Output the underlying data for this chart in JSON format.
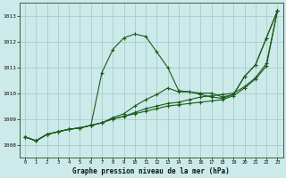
{
  "title": "Graphe pression niveau de la mer (hPa)",
  "background_color": "#cceaea",
  "grid_color": "#aacccc",
  "line_color": "#1a5c1a",
  "xlim": [
    -0.5,
    23.5
  ],
  "ylim": [
    1007.5,
    1013.5
  ],
  "yticks": [
    1008,
    1009,
    1010,
    1011,
    1012,
    1013
  ],
  "xticks": [
    0,
    1,
    2,
    3,
    4,
    5,
    6,
    7,
    8,
    9,
    10,
    11,
    12,
    13,
    14,
    15,
    16,
    17,
    18,
    19,
    20,
    21,
    22,
    23
  ],
  "series": [
    [
      1008.3,
      1008.15,
      1008.4,
      1008.5,
      1008.6,
      1008.65,
      1008.75,
      1010.8,
      1011.7,
      1012.15,
      1012.3,
      1012.2,
      1011.6,
      1011.0,
      1010.1,
      1010.05,
      1010.0,
      1010.0,
      1009.85,
      1009.95,
      1010.65,
      1011.1,
      1012.15,
      1013.2
    ],
    [
      1008.3,
      1008.15,
      1008.4,
      1008.5,
      1008.6,
      1008.65,
      1008.75,
      1008.85,
      1009.0,
      1009.1,
      1009.25,
      1009.4,
      1009.5,
      1009.6,
      1009.65,
      1009.75,
      1009.85,
      1009.9,
      1009.95,
      1010.0,
      1010.25,
      1010.6,
      1011.15,
      1013.2
    ],
    [
      1008.3,
      1008.15,
      1008.4,
      1008.5,
      1008.6,
      1008.65,
      1008.75,
      1008.85,
      1009.0,
      1009.1,
      1009.2,
      1009.3,
      1009.4,
      1009.5,
      1009.55,
      1009.6,
      1009.65,
      1009.7,
      1009.75,
      1009.9,
      1010.2,
      1010.55,
      1011.05,
      1013.2
    ],
    [
      1008.3,
      1008.15,
      1008.4,
      1008.5,
      1008.6,
      1008.65,
      1008.75,
      1008.85,
      1009.05,
      1009.2,
      1009.5,
      1009.75,
      1009.95,
      1010.2,
      1010.05,
      1010.05,
      1009.95,
      1009.85,
      1009.8,
      1009.95,
      1010.65,
      1011.1,
      1012.15,
      1013.2
    ]
  ]
}
